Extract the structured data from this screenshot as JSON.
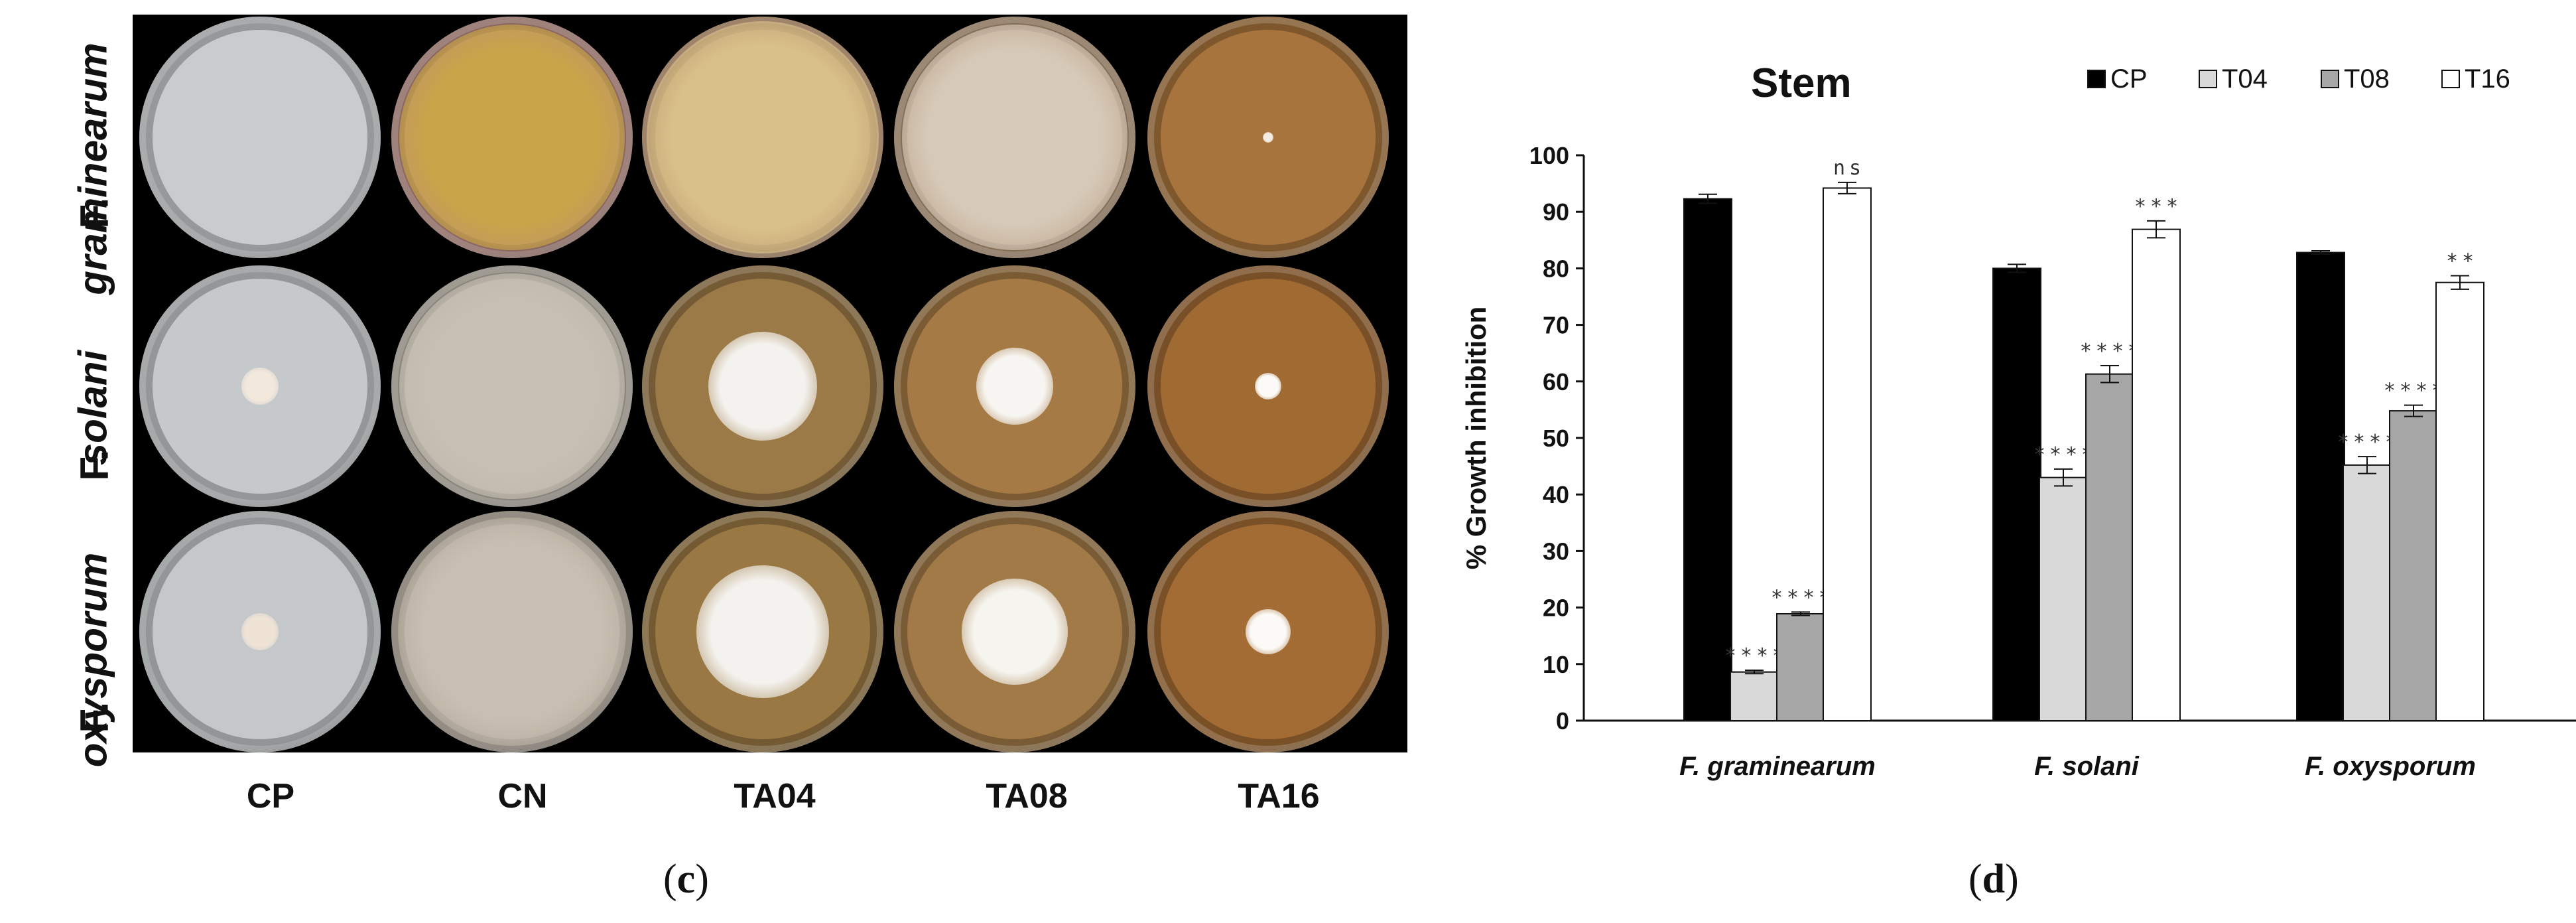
{
  "photo_panel": {
    "row_labels": [
      {
        "prefix": "F.",
        "species": "graminearum"
      },
      {
        "prefix": "F.",
        "species": "solani"
      },
      {
        "prefix": "F.",
        "species": "oxysporum"
      }
    ],
    "col_labels": [
      "CP",
      "CN",
      "TA04",
      "TA08",
      "TA16"
    ],
    "letter": {
      "open": "(",
      "letter": "c",
      "close": ")"
    }
  },
  "chart_panel": {
    "letter": {
      "open": "(",
      "letter": "d",
      "close": ")"
    }
  },
  "colors": {
    "CP": "#000000",
    "T04": "#d9d9d9",
    "T08": "#a6a6a6",
    "T16": "#ffffff"
  },
  "chart_data": {
    "type": "bar",
    "title": "Stem",
    "ylabel": "% Growth inhibition",
    "xlabel": "",
    "ylim": [
      0,
      100
    ],
    "yticks": [
      0,
      10,
      20,
      30,
      40,
      50,
      60,
      70,
      80,
      90,
      100
    ],
    "legend_position": "top-right",
    "categories": [
      "F. graminearum",
      "F. solani",
      "F. oxysporum"
    ],
    "series": [
      {
        "name": "CP",
        "values": [
          92.3,
          80.0,
          82.8
        ],
        "errors": [
          0.8,
          0.7,
          0.3
        ],
        "labels": [
          "",
          "",
          ""
        ]
      },
      {
        "name": "T04",
        "values": [
          8.6,
          43.0,
          45.2
        ],
        "errors": [
          0.3,
          1.5,
          1.5
        ],
        "labels": [
          "****",
          "****",
          "****"
        ]
      },
      {
        "name": "T08",
        "values": [
          18.9,
          61.3,
          54.8
        ],
        "errors": [
          0.3,
          1.5,
          1.0
        ],
        "labels": [
          "****",
          "****",
          "****"
        ]
      },
      {
        "name": "T16",
        "values": [
          94.2,
          86.9,
          77.5
        ],
        "errors": [
          1.0,
          1.5,
          1.2
        ],
        "labels": [
          "ns",
          "***",
          "**"
        ]
      }
    ]
  }
}
